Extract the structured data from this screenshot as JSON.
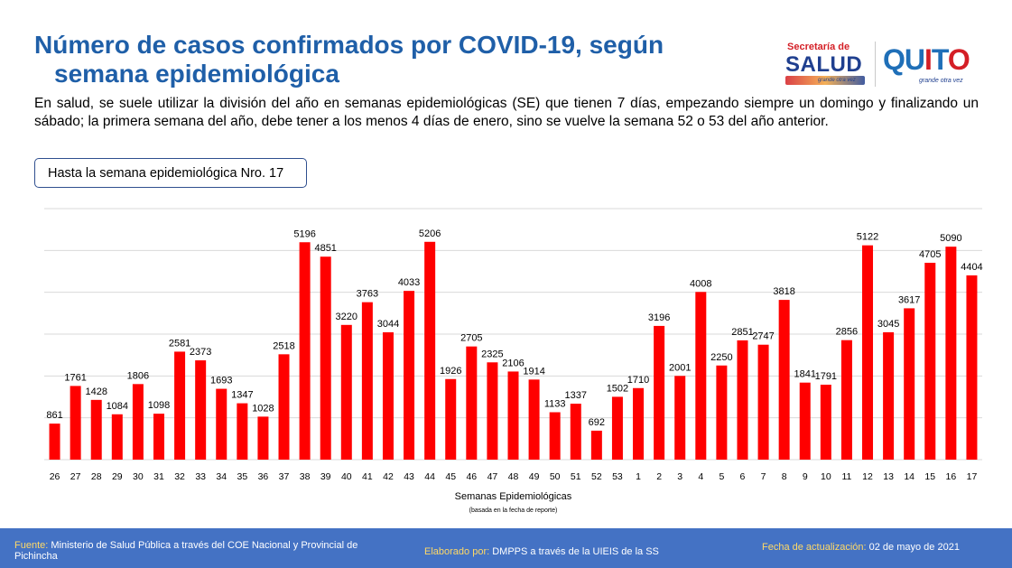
{
  "header": {
    "title_line1": "Número de casos confirmados por COVID-19, según",
    "title_line2": "semana epidemiológica"
  },
  "logos": {
    "salud_top": "Secretaría de",
    "salud_main": "SALUD",
    "salud_tag": "grande otra vez",
    "quito_letters": [
      "Q",
      "U",
      "I",
      "T",
      "O"
    ],
    "quito_tag": "grande otra vez"
  },
  "description": "En salud, se suele utilizar la división del año en semanas epidemiológicas (SE) que tienen 7 días, empezando siempre un domingo y finalizando un sábado; la primera semana del año, debe tener a los menos 4 días de enero, sino se vuelve la semana 52 o 53 del año anterior.",
  "badge": "Hasta la semana epidemiológica Nro. 17",
  "chart_data": {
    "type": "bar",
    "title": "",
    "xlabel": "Semanas Epidemiológicas",
    "xlabel_sub": "(basada en la fecha de reporte)",
    "ylabel": "",
    "ylim": [
      0,
      6000
    ],
    "grid": true,
    "color": "#ff0000",
    "categories": [
      "26",
      "27",
      "28",
      "29",
      "30",
      "31",
      "32",
      "33",
      "34",
      "35",
      "36",
      "37",
      "38",
      "39",
      "40",
      "41",
      "42",
      "43",
      "44",
      "45",
      "46",
      "47",
      "48",
      "49",
      "50",
      "51",
      "52",
      "53",
      "1",
      "2",
      "3",
      "4",
      "5",
      "6",
      "7",
      "8",
      "9",
      "10",
      "11",
      "12",
      "13",
      "14",
      "15",
      "16",
      "17"
    ],
    "values": [
      861,
      1761,
      1428,
      1084,
      1806,
      1098,
      2581,
      2373,
      1693,
      1347,
      1028,
      2518,
      5196,
      4851,
      3220,
      3763,
      3044,
      4033,
      5206,
      1926,
      2705,
      2325,
      2106,
      1914,
      1133,
      1337,
      692,
      1502,
      1710,
      3196,
      2001,
      4008,
      2250,
      2851,
      2747,
      3818,
      1841,
      1791,
      2856,
      5122,
      3045,
      3617,
      4705,
      5090,
      4404
    ]
  },
  "footer": {
    "source_key": "Fuente:",
    "source_text": "Ministerio de Salud Pública a través del COE Nacional y Provincial de Pichincha",
    "by_key": "Elaborado por:",
    "by_text": "DMPPS a través de la UIEIS de la SS",
    "date_key": "Fecha de actualización:",
    "date_text": "02 de mayo de 2021"
  }
}
